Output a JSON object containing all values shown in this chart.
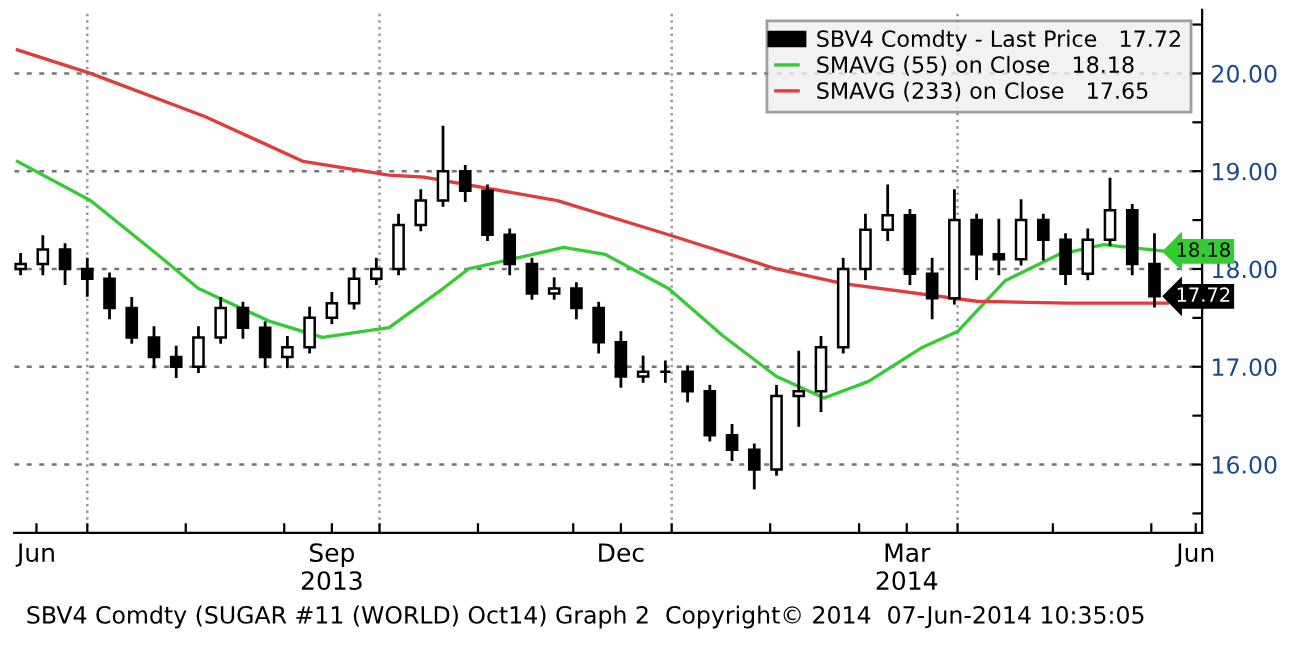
{
  "chart_data": {
    "type": "candlestick",
    "x": [
      "2013-06-10",
      "2013-06-17",
      "2013-06-24",
      "2013-07-01",
      "2013-07-08",
      "2013-07-15",
      "2013-07-22",
      "2013-07-29",
      "2013-08-05",
      "2013-08-12",
      "2013-08-19",
      "2013-08-26",
      "2013-09-02",
      "2013-09-09",
      "2013-09-16",
      "2013-09-23",
      "2013-09-30",
      "2013-10-07",
      "2013-10-14",
      "2013-10-21",
      "2013-10-28",
      "2013-11-04",
      "2013-11-11",
      "2013-11-18",
      "2013-11-25",
      "2013-12-02",
      "2013-12-09",
      "2013-12-16",
      "2013-12-23",
      "2013-12-30",
      "2014-01-06",
      "2014-01-13",
      "2014-01-20",
      "2014-01-27",
      "2014-02-03",
      "2014-02-10",
      "2014-02-17",
      "2014-02-24",
      "2014-03-03",
      "2014-03-10",
      "2014-03-17",
      "2014-03-24",
      "2014-03-31",
      "2014-04-07",
      "2014-04-14",
      "2014-04-21",
      "2014-04-28",
      "2014-05-05",
      "2014-05-12",
      "2014-05-19",
      "2014-05-26",
      "2014-06-02"
    ],
    "series": [
      {
        "name": "SBV4 Comdty - Last Price   17.72",
        "color": "#000000",
        "ohlc": [
          [
            18.0,
            18.15,
            17.95,
            18.05
          ],
          [
            18.05,
            18.33,
            17.95,
            18.2
          ],
          [
            18.2,
            18.25,
            17.85,
            18.0
          ],
          [
            18.0,
            18.1,
            17.73,
            17.9
          ],
          [
            17.9,
            17.95,
            17.5,
            17.6
          ],
          [
            17.6,
            17.7,
            17.25,
            17.3
          ],
          [
            17.3,
            17.4,
            17.0,
            17.1
          ],
          [
            17.1,
            17.2,
            16.9,
            17.0
          ],
          [
            17.0,
            17.4,
            16.95,
            17.3
          ],
          [
            17.3,
            17.7,
            17.25,
            17.6
          ],
          [
            17.6,
            17.65,
            17.3,
            17.4
          ],
          [
            17.4,
            17.45,
            17.0,
            17.1
          ],
          [
            17.1,
            17.3,
            17.0,
            17.2
          ],
          [
            17.2,
            17.6,
            17.15,
            17.5
          ],
          [
            17.5,
            17.75,
            17.45,
            17.65
          ],
          [
            17.65,
            18.0,
            17.6,
            17.9
          ],
          [
            17.9,
            18.1,
            17.85,
            18.0
          ],
          [
            18.0,
            18.55,
            17.95,
            18.45
          ],
          [
            18.45,
            18.8,
            18.4,
            18.7
          ],
          [
            18.7,
            19.45,
            18.65,
            19.0
          ],
          [
            19.0,
            19.05,
            18.7,
            18.8
          ],
          [
            18.8,
            18.85,
            18.3,
            18.35
          ],
          [
            18.35,
            18.4,
            17.95,
            18.05
          ],
          [
            18.05,
            18.1,
            17.7,
            17.75
          ],
          [
            17.75,
            17.9,
            17.7,
            17.8
          ],
          [
            17.8,
            17.85,
            17.5,
            17.6
          ],
          [
            17.6,
            17.65,
            17.15,
            17.25
          ],
          [
            17.25,
            17.35,
            16.8,
            16.9
          ],
          [
            16.9,
            17.1,
            16.85,
            16.95
          ],
          [
            16.95,
            17.05,
            16.85,
            16.95
          ],
          [
            16.95,
            17.0,
            16.65,
            16.75
          ],
          [
            16.75,
            16.8,
            16.25,
            16.3
          ],
          [
            16.3,
            16.4,
            16.05,
            16.15
          ],
          [
            16.15,
            16.2,
            15.76,
            15.95
          ],
          [
            15.95,
            16.8,
            15.9,
            16.7
          ],
          [
            16.7,
            17.15,
            16.4,
            16.75
          ],
          [
            16.75,
            17.3,
            16.55,
            17.2
          ],
          [
            17.2,
            18.1,
            17.15,
            18.0
          ],
          [
            18.0,
            18.55,
            17.9,
            18.4
          ],
          [
            18.4,
            18.85,
            18.3,
            18.55
          ],
          [
            18.55,
            18.6,
            17.85,
            17.95
          ],
          [
            17.95,
            18.1,
            17.5,
            17.7
          ],
          [
            17.7,
            18.8,
            17.65,
            18.5
          ],
          [
            18.5,
            18.55,
            17.9,
            18.15
          ],
          [
            18.15,
            18.5,
            17.95,
            18.1
          ],
          [
            18.1,
            18.7,
            18.05,
            18.5
          ],
          [
            18.5,
            18.55,
            18.1,
            18.3
          ],
          [
            18.3,
            18.35,
            17.85,
            17.95
          ],
          [
            17.95,
            18.4,
            17.9,
            18.3
          ],
          [
            18.3,
            18.92,
            18.25,
            18.6
          ],
          [
            18.6,
            18.65,
            17.95,
            18.05
          ],
          [
            18.05,
            18.35,
            17.62,
            17.72
          ]
        ]
      },
      {
        "name": "SMAVG (55) on Close   18.18",
        "type": "line",
        "color": "#33cc33",
        "x": [
          "2013-06-09",
          "2013-07-02",
          "2013-07-23",
          "2013-08-05",
          "2013-08-27",
          "2013-09-13",
          "2013-10-04",
          "2013-10-21",
          "2013-10-29",
          "2013-11-28",
          "2013-12-11",
          "2013-12-31",
          "2014-01-17",
          "2014-02-03",
          "2014-02-18",
          "2014-03-04",
          "2014-03-21",
          "2014-04-01",
          "2014-04-16",
          "2014-05-03",
          "2014-05-17",
          "2014-06-06"
        ],
        "values": [
          19.1,
          18.7,
          18.15,
          17.8,
          17.47,
          17.3,
          17.4,
          17.8,
          18.0,
          18.22,
          18.15,
          17.8,
          17.32,
          16.9,
          16.68,
          16.85,
          17.2,
          17.36,
          17.88,
          18.15,
          18.25,
          18.18
        ]
      },
      {
        "name": "SMAVG (233) on Close   17.65",
        "type": "line",
        "color": "#e03c3c",
        "x": [
          "2013-06-09",
          "2013-07-02",
          "2013-08-07",
          "2013-09-07",
          "2013-10-04",
          "2013-10-15",
          "2013-11-26",
          "2013-12-31",
          "2014-02-03",
          "2014-02-24",
          "2014-04-07",
          "2014-05-06",
          "2014-06-06"
        ],
        "values": [
          20.24,
          20.0,
          19.56,
          19.1,
          18.96,
          18.94,
          18.7,
          18.35,
          18.0,
          17.85,
          17.67,
          17.65,
          17.65
        ]
      }
    ],
    "xlim": [
      "2013-06-08",
      "2014-06-17"
    ],
    "xticks": [
      {
        "value": "2013-06-15",
        "label": "Jun"
      },
      {
        "value": "2013-07-01",
        "label": null
      },
      {
        "value": "2013-08-01",
        "label": null
      },
      {
        "value": "2013-09-01",
        "label": null
      },
      {
        "value": "2013-09-16",
        "label": "Sep\n2013"
      },
      {
        "value": "2013-10-01",
        "label": null
      },
      {
        "value": "2013-11-01",
        "label": null
      },
      {
        "value": "2013-12-01",
        "label": null
      },
      {
        "value": "2013-12-16",
        "label": "Dec"
      },
      {
        "value": "2014-01-01",
        "label": null
      },
      {
        "value": "2014-02-01",
        "label": null
      },
      {
        "value": "2014-03-01",
        "label": null
      },
      {
        "value": "2014-03-16",
        "label": "Mar\n2014"
      },
      {
        "value": "2014-04-01",
        "label": null
      },
      {
        "value": "2014-05-01",
        "label": null
      },
      {
        "value": "2014-06-01",
        "label": null
      },
      {
        "value": "2014-06-15",
        "label": "Jun"
      }
    ],
    "ylim": [
      15.3,
      20.65
    ],
    "yticks": [
      {
        "value": 15.5,
        "label": null
      },
      {
        "value": 16,
        "label": "16.00"
      },
      {
        "value": 16.5,
        "label": null
      },
      {
        "value": 17,
        "label": "17.00"
      },
      {
        "value": 17.5,
        "label": null
      },
      {
        "value": 18,
        "label": "18.00"
      },
      {
        "value": 18.5,
        "label": null
      },
      {
        "value": 19,
        "label": "19.00"
      },
      {
        "value": 19.5,
        "label": null
      },
      {
        "value": 20,
        "label": "20.00"
      },
      {
        "value": 20.5,
        "label": null
      }
    ],
    "grid": "y",
    "ref_lines": [
      {
        "axis": "x",
        "value": "2013-07-01",
        "color": "#999999",
        "line_style": "dotted"
      },
      {
        "axis": "x",
        "value": "2013-10-01",
        "color": "#999999",
        "line_style": "dotted"
      },
      {
        "axis": "x",
        "value": "2014-01-01",
        "color": "#999999",
        "line_style": "dotted"
      },
      {
        "axis": "x",
        "value": "2014-04-01",
        "color": "#999999",
        "line_style": "dotted"
      }
    ],
    "annotations": [
      {
        "text": "17.72",
        "x": "2014-06-06",
        "y": 17.72
      },
      {
        "text": "18.18",
        "x": "2014-06-06",
        "y": 18.18
      },
      "SBV4 Comdty (SUGAR #11 (WORLD) Oct14) Graph 2  Copyright© 2014  07-Jun-2014 10:35:05"
    ],
    "legend": "top right"
  }
}
